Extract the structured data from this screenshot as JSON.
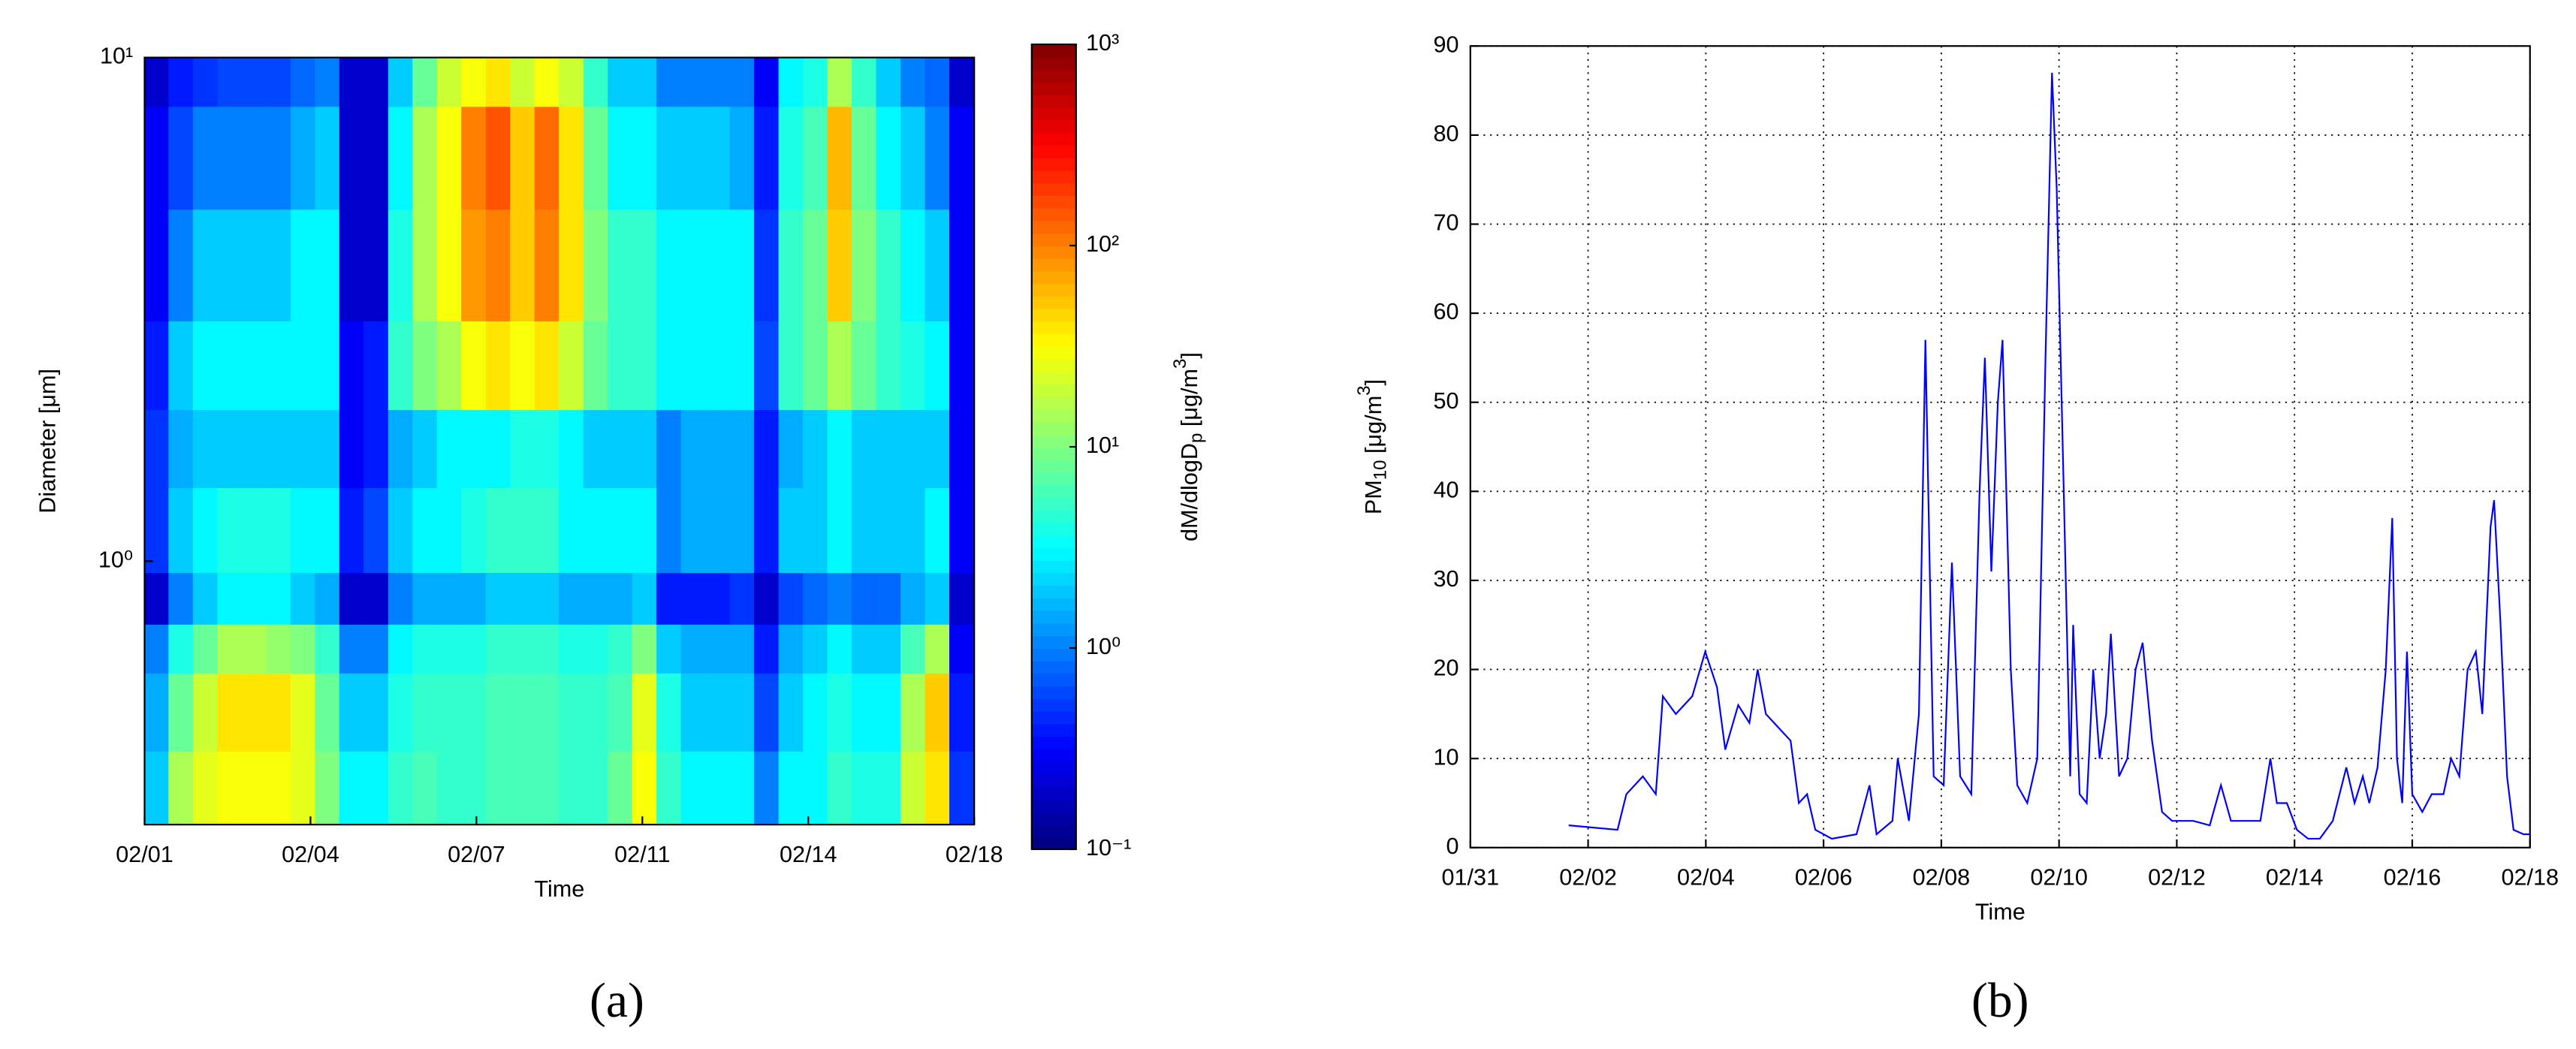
{
  "chart_data": [
    {
      "type": "heatmap",
      "xlabel": "Time",
      "ylabel": "Diameter [μm]",
      "colorbar_label": [
        {
          "text": "dM/dlogD"
        },
        {
          "text": "p",
          "script": "sub"
        },
        {
          "text": " [μg/m"
        },
        {
          "text": "3",
          "script": "sup"
        },
        {
          "text": "]"
        }
      ],
      "caption": "(a)",
      "xlim": [
        1,
        18
      ],
      "xticks": [
        {
          "value": 1,
          "label": "02/01"
        },
        {
          "value": 4.4,
          "label": "02/04"
        },
        {
          "value": 7.8,
          "label": "02/07"
        },
        {
          "value": 11.2,
          "label": "02/11"
        },
        {
          "value": 14.6,
          "label": "02/14"
        },
        {
          "value": 18,
          "label": "02/18"
        }
      ],
      "ylim": [
        0.3,
        10
      ],
      "yscale": "log",
      "yticks": [
        {
          "value": 1,
          "label": "10⁰"
        },
        {
          "value": 10,
          "label": "10¹"
        }
      ],
      "clim": [
        0.1,
        1000
      ],
      "cscale": "log",
      "colormap": "jet",
      "cticks": [
        {
          "value": 0.1,
          "label": "10⁻¹"
        },
        {
          "value": 1,
          "label": "10⁰"
        },
        {
          "value": 10,
          "label": "10¹"
        },
        {
          "value": 100,
          "label": "10²"
        },
        {
          "value": 1000,
          "label": "10³"
        }
      ],
      "x_edges": [
        1,
        1.5,
        2,
        2.5,
        3,
        3.5,
        4,
        4.5,
        5,
        5.5,
        6,
        6.5,
        7,
        7.5,
        8,
        8.5,
        9,
        9.5,
        10,
        10.5,
        11,
        11.5,
        12,
        12.5,
        13,
        13.5,
        14,
        14.5,
        15,
        15.5,
        16,
        16.5,
        17,
        17.5,
        18
      ],
      "y_edges": [
        0.3,
        0.42,
        0.6,
        0.75,
        0.95,
        1.4,
        2,
        3,
        5,
        8,
        10
      ],
      "z": [
        [
          2,
          15,
          25,
          30,
          30,
          30,
          25,
          10,
          3,
          3,
          5,
          6,
          5,
          5,
          6,
          6,
          6,
          5,
          5,
          8,
          30,
          5,
          3,
          3,
          3,
          1,
          3,
          3,
          5,
          4,
          4,
          20,
          40,
          0.5
        ],
        [
          1.5,
          8,
          20,
          40,
          40,
          40,
          25,
          8,
          2,
          2,
          4,
          5,
          5,
          5,
          6,
          6,
          6,
          5,
          5,
          6,
          25,
          4,
          2,
          2,
          2,
          0.6,
          2,
          3,
          4,
          3,
          3,
          15,
          50,
          0.4
        ],
        [
          1,
          4,
          8,
          15,
          15,
          12,
          10,
          5,
          1,
          1,
          3,
          4,
          4,
          4,
          5,
          5,
          5,
          4,
          4,
          5,
          10,
          2,
          1.5,
          1.5,
          1.5,
          0.4,
          1.5,
          2,
          3,
          2,
          2,
          6,
          15,
          0.3
        ],
        [
          0.2,
          1,
          2,
          3,
          3,
          3,
          2,
          1.5,
          0.2,
          0.2,
          1,
          1.5,
          1.5,
          1.5,
          2,
          2,
          2,
          1.5,
          1.5,
          1.5,
          2,
          0.4,
          0.4,
          0.4,
          0.5,
          0.2,
          0.6,
          0.8,
          1,
          0.8,
          0.8,
          1.5,
          2,
          0.2
        ],
        [
          0.5,
          2,
          3,
          4,
          4,
          4,
          3,
          3,
          0.4,
          0.6,
          2,
          3,
          3,
          4,
          5,
          5,
          5,
          3,
          3,
          3,
          3,
          1,
          1.5,
          1.5,
          1.5,
          0.4,
          2,
          2,
          3,
          2,
          2,
          2,
          3,
          0.3
        ],
        [
          0.5,
          1.5,
          2,
          2,
          2,
          2,
          2,
          2,
          0.3,
          0.4,
          1.5,
          2,
          3,
          3,
          3,
          4,
          4,
          3,
          2,
          2,
          2,
          1,
          1.5,
          1.5,
          1.5,
          0.4,
          1.5,
          2,
          3,
          2,
          2,
          2,
          2,
          0.3
        ],
        [
          0.4,
          2,
          3,
          3,
          3,
          3,
          3,
          3,
          0.3,
          0.4,
          5,
          10,
          15,
          30,
          40,
          30,
          40,
          20,
          8,
          5,
          5,
          3,
          3,
          3,
          3,
          0.6,
          5,
          8,
          15,
          8,
          5,
          4,
          3,
          0.3
        ],
        [
          0.3,
          1,
          2,
          2,
          2,
          2,
          3,
          3,
          0.2,
          0.2,
          4,
          15,
          30,
          80,
          100,
          50,
          100,
          40,
          10,
          5,
          5,
          3,
          3,
          3,
          3,
          0.5,
          5,
          8,
          50,
          10,
          5,
          3,
          2,
          0.3
        ],
        [
          0.3,
          0.6,
          1,
          1,
          1,
          1,
          1.5,
          2,
          0.2,
          0.2,
          3,
          15,
          30,
          100,
          150,
          50,
          120,
          40,
          8,
          3,
          3,
          2,
          2,
          2,
          1.5,
          0.4,
          4,
          6,
          60,
          8,
          3,
          2,
          1,
          0.3
        ],
        [
          0.2,
          0.4,
          0.5,
          0.6,
          0.6,
          0.6,
          0.8,
          1,
          0.2,
          0.2,
          2,
          8,
          20,
          30,
          40,
          20,
          30,
          20,
          5,
          2,
          2,
          1,
          1,
          1,
          1,
          0.3,
          3,
          4,
          15,
          5,
          2,
          1,
          0.8,
          0.2
        ]
      ]
    },
    {
      "type": "line",
      "xlabel": "Time",
      "ylabel": [
        {
          "text": "PM"
        },
        {
          "text": "10",
          "script": "sub"
        },
        {
          "text": " [μg/m"
        },
        {
          "text": "3",
          "script": "sup"
        },
        {
          "text": "]"
        }
      ],
      "caption": "(b)",
      "color": "#0000ff",
      "grid": true,
      "xlim": [
        0,
        18
      ],
      "xticks": [
        {
          "value": 0,
          "label": "01/31"
        },
        {
          "value": 2,
          "label": "02/02"
        },
        {
          "value": 4,
          "label": "02/04"
        },
        {
          "value": 6,
          "label": "02/06"
        },
        {
          "value": 8,
          "label": "02/08"
        },
        {
          "value": 10,
          "label": "02/10"
        },
        {
          "value": 12,
          "label": "02/12"
        },
        {
          "value": 14,
          "label": "02/14"
        },
        {
          "value": 16,
          "label": "02/16"
        },
        {
          "value": 18,
          "label": "02/18"
        }
      ],
      "ylim": [
        0,
        90
      ],
      "yticks": [
        0,
        10,
        20,
        30,
        40,
        50,
        60,
        70,
        80,
        90
      ],
      "x": [
        1.67,
        2.5,
        2.65,
        2.93,
        3.15,
        3.27,
        3.49,
        3.77,
        3.99,
        4.19,
        4.33,
        4.55,
        4.74,
        4.88,
        5.02,
        5.3,
        5.44,
        5.58,
        5.72,
        5.86,
        6.14,
        6.56,
        6.78,
        6.9,
        7.17,
        7.26,
        7.45,
        7.62,
        7.73,
        7.87,
        8.04,
        8.18,
        8.32,
        8.51,
        8.65,
        8.74,
        8.85,
        8.96,
        9.04,
        9.18,
        9.29,
        9.46,
        9.63,
        9.77,
        9.88,
        9.96,
        10.08,
        10.19,
        10.24,
        10.35,
        10.47,
        10.58,
        10.69,
        10.8,
        10.88,
        11.02,
        11.16,
        11.3,
        11.42,
        11.58,
        11.75,
        11.92,
        12.28,
        12.56,
        12.75,
        12.92,
        13.2,
        13.42,
        13.59,
        13.7,
        13.87,
        14.04,
        14.23,
        14.43,
        14.65,
        14.88,
        15.02,
        15.16,
        15.27,
        15.41,
        15.55,
        15.66,
        15.74,
        15.83,
        15.91,
        16.0,
        16.17,
        16.33,
        16.53,
        16.66,
        16.8,
        16.94,
        17.08,
        17.19,
        17.33,
        17.39,
        17.5,
        17.61,
        17.72,
        17.89,
        18.0
      ],
      "values": [
        2.5,
        2,
        6,
        8,
        6,
        17,
        15,
        17,
        22,
        18,
        11,
        16,
        14,
        20,
        15,
        13,
        12,
        5,
        6,
        2,
        1,
        1.5,
        7,
        1.5,
        3,
        10,
        3,
        15,
        57,
        8,
        7,
        32,
        8,
        6,
        40,
        55,
        31,
        50,
        57,
        20,
        7,
        5,
        10,
        55,
        87,
        74,
        40,
        8,
        25,
        6,
        5,
        20,
        10,
        15,
        24,
        8,
        10,
        20,
        23,
        12,
        4,
        3,
        3,
        2.5,
        7,
        3,
        3,
        3,
        10,
        5,
        5,
        2,
        1,
        1,
        3,
        9,
        5,
        8,
        5,
        9,
        20,
        37,
        10,
        5,
        22,
        6,
        4,
        6,
        6,
        10,
        8,
        20,
        22,
        15,
        36,
        39,
        25,
        8,
        2,
        1.5,
        1.5
      ]
    }
  ]
}
